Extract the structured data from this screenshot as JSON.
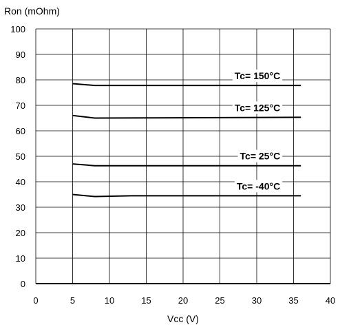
{
  "chart_data": {
    "type": "line",
    "title": "",
    "xlabel": "Vcc (V)",
    "ylabel": "Ron (mOhm)",
    "xlim": [
      0,
      40
    ],
    "ylim": [
      0,
      100
    ],
    "x_ticks": [
      0,
      5,
      10,
      15,
      20,
      25,
      30,
      35,
      40
    ],
    "y_ticks": [
      0,
      10,
      20,
      30,
      40,
      50,
      60,
      70,
      80,
      90,
      100
    ],
    "grid": true,
    "series": [
      {
        "name": "Tc= 150°C",
        "x": [
          5,
          8,
          36
        ],
        "y": [
          78.5,
          77.8,
          77.8
        ]
      },
      {
        "name": "Tc= 125°C",
        "x": [
          5,
          8,
          36
        ],
        "y": [
          66,
          65,
          65.3
        ]
      },
      {
        "name": "Tc= 25°C",
        "x": [
          5,
          8,
          36
        ],
        "y": [
          47,
          46.3,
          46.3
        ]
      },
      {
        "name": "Tc= -40°C",
        "x": [
          5,
          8,
          13,
          36
        ],
        "y": [
          35,
          34.2,
          34.5,
          34.5
        ]
      }
    ]
  }
}
